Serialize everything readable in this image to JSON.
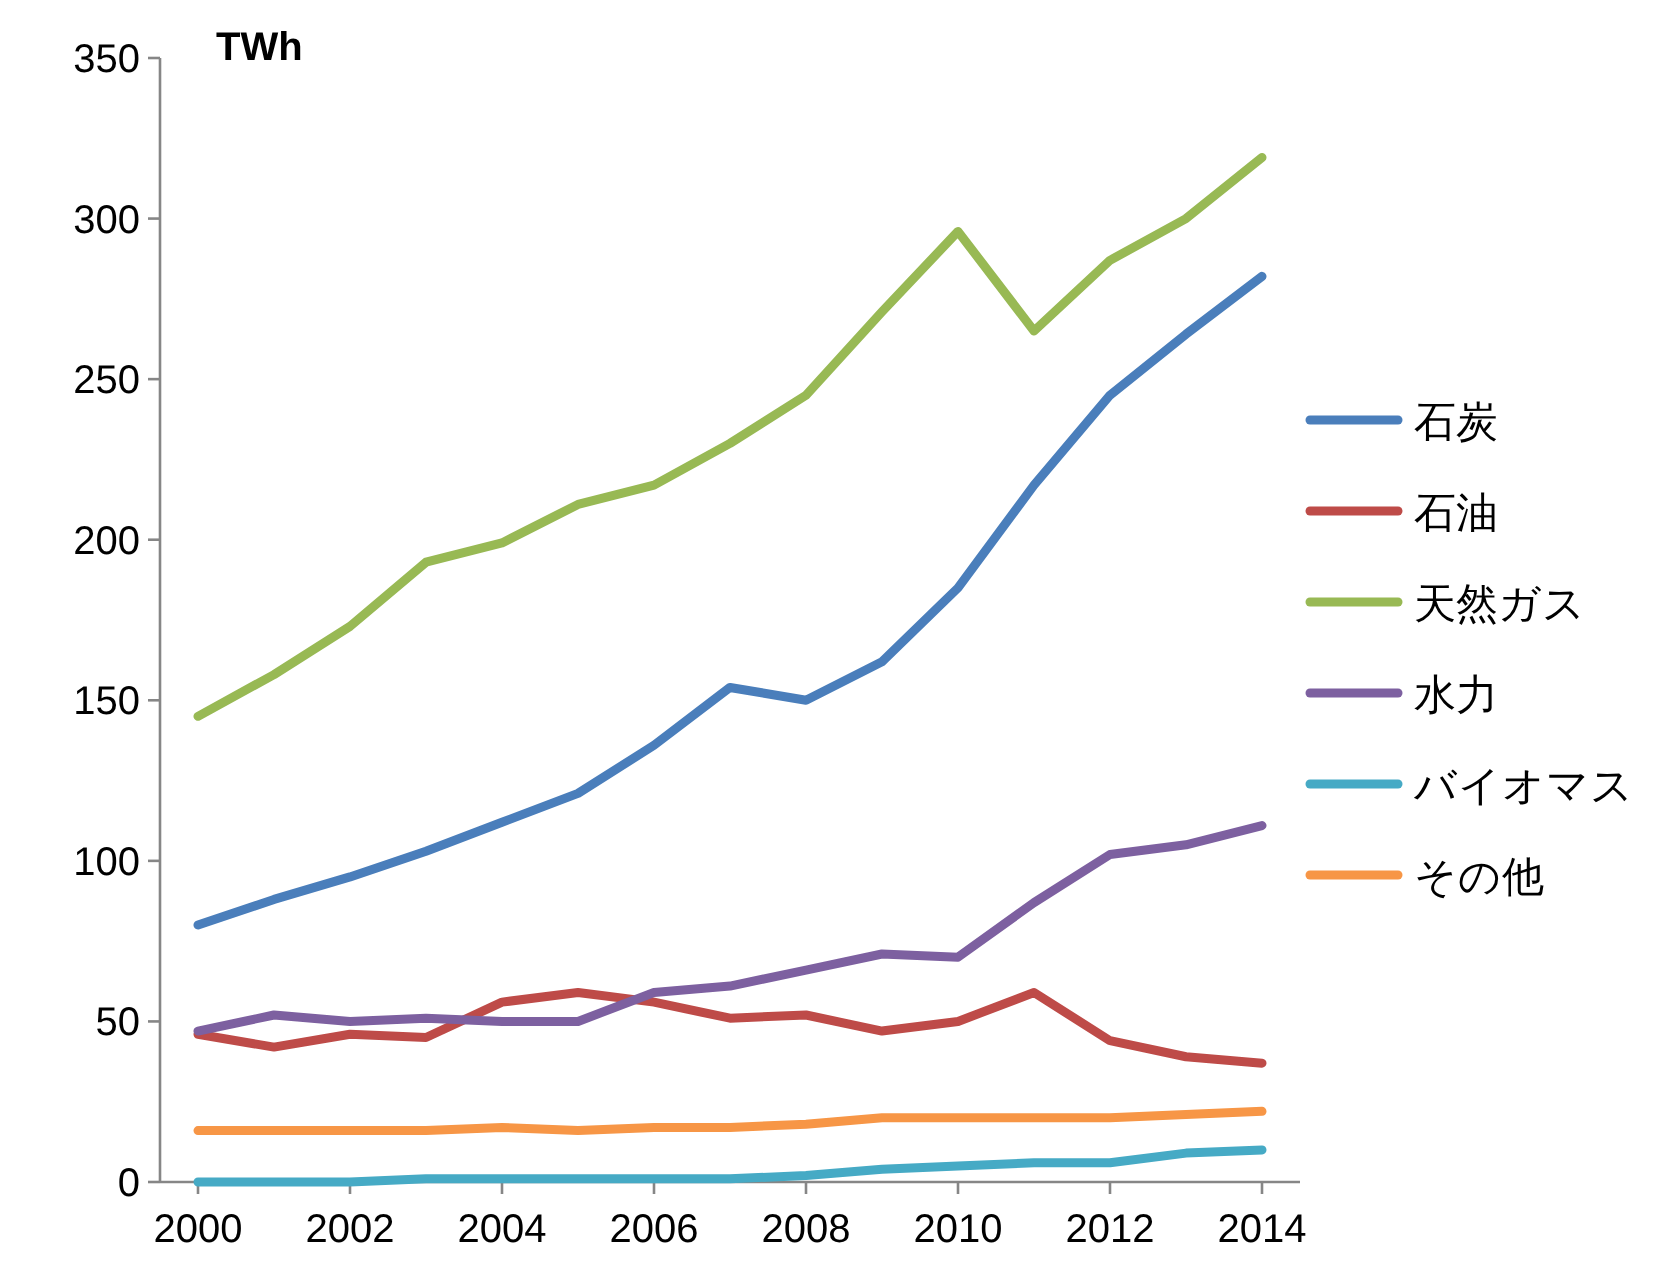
{
  "chart_data": {
    "type": "line",
    "ylabel": "TWh",
    "x": [
      2000,
      2001,
      2002,
      2003,
      2004,
      2005,
      2006,
      2007,
      2008,
      2009,
      2010,
      2011,
      2012,
      2013,
      2014
    ],
    "xlim": [
      1999.5,
      2014.5
    ],
    "xticks": [
      2000,
      2002,
      2004,
      2006,
      2008,
      2010,
      2012,
      2014
    ],
    "ylim": [
      0,
      350
    ],
    "yticks": [
      0,
      50,
      100,
      150,
      200,
      250,
      300,
      350
    ],
    "legend": "right",
    "series": [
      {
        "name": "石炭",
        "color": "#4a7ebb",
        "values": [
          80,
          88,
          95,
          103,
          112,
          121,
          136,
          154,
          150,
          162,
          185,
          217,
          245,
          264,
          282
        ]
      },
      {
        "name": "石油",
        "color": "#be4b48",
        "values": [
          46,
          42,
          46,
          45,
          56,
          59,
          56,
          51,
          52,
          47,
          50,
          59,
          44,
          39,
          37
        ]
      },
      {
        "name": "天然ガス",
        "color": "#98b954",
        "values": [
          145,
          158,
          173,
          193,
          199,
          211,
          217,
          230,
          245,
          271,
          296,
          265,
          287,
          300,
          319
        ]
      },
      {
        "name": "水力",
        "color": "#7d60a0",
        "values": [
          47,
          52,
          50,
          51,
          50,
          50,
          59,
          61,
          66,
          71,
          70,
          87,
          102,
          105,
          111
        ]
      },
      {
        "name": "バイオマス",
        "color": "#46aac5",
        "values": [
          0,
          0,
          0,
          1,
          1,
          1,
          1,
          1,
          2,
          4,
          5,
          6,
          6,
          9,
          10
        ]
      },
      {
        "name": "その他",
        "color": "#f79646",
        "values": [
          16,
          16,
          16,
          16,
          17,
          16,
          17,
          17,
          18,
          20,
          20,
          20,
          20,
          21,
          22
        ]
      }
    ]
  }
}
